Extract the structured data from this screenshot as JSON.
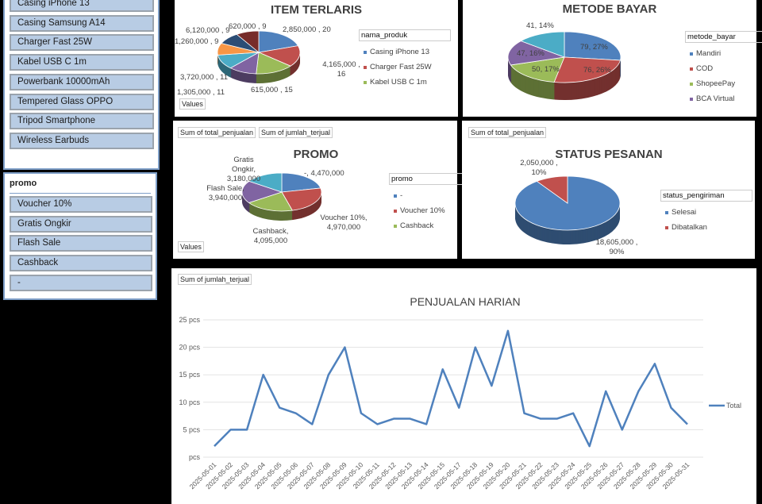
{
  "slicer_produk": {
    "items": [
      "Casing iPhone 13",
      "Casing Samsung A14",
      "Charger Fast 25W",
      "Kabel USB C 1m",
      "Powerbank 10000mAh",
      "Tempered Glass OPPO",
      "Tripod Smartphone",
      "Wireless Earbuds"
    ]
  },
  "slicer_promo": {
    "header": "promo",
    "items": [
      "Voucher 10%",
      "Gratis Ongkir",
      "Flash Sale",
      "Cashback",
      "-"
    ]
  },
  "chart_data": [
    {
      "type": "pie",
      "title": "ITEM TERLARIS",
      "legend_title": "nama_produk",
      "legend": [
        "Casing iPhone 13",
        "Charger Fast 25W",
        "Kabel USB C 1m"
      ],
      "field_button": "Values",
      "labels": [
        "2,850,000 , 20",
        "4,165,000 , 16",
        "615,000 , 15",
        "1,305,000 , 11",
        "3,720,000 , 11",
        "1,260,000 , 9",
        "6,120,000 , 9",
        "620,000 , 9"
      ],
      "values": [
        20,
        16,
        15,
        11,
        11,
        9,
        9,
        9
      ],
      "colors": [
        "#4f81bd",
        "#c0504d",
        "#9bbb59",
        "#8064a2",
        "#4bacc6",
        "#f79646",
        "#2c4d75",
        "#772c2a"
      ]
    },
    {
      "type": "pie",
      "title": "METODE BAYAR",
      "legend_title": "metode_bayar",
      "legend": [
        "Mandiri",
        "COD",
        "ShopeePay",
        "BCA Virtual"
      ],
      "labels": [
        "79, 27%",
        "76, 26%",
        "50, 17%",
        "47, 16%",
        "41, 14%"
      ],
      "values": [
        79,
        76,
        50,
        47,
        41
      ],
      "colors": [
        "#4f81bd",
        "#c0504d",
        "#9bbb59",
        "#8064a2",
        "#4bacc6"
      ]
    },
    {
      "type": "pie",
      "title": "PROMO",
      "field_buttons": [
        "Sum of total_penjualan",
        "Sum of jumlah_terjual"
      ],
      "legend_title": "promo",
      "legend": [
        "-",
        "Voucher 10%",
        "Cashback"
      ],
      "field_button": "Values",
      "labels": [
        "-,  4,470,000",
        "Voucher 10%, 4,970,000",
        "Cashback, 4,095,000",
        "Flash Sale, 3,940,000",
        "Gratis Ongkir, 3,180,000"
      ],
      "values": [
        4470000,
        4970000,
        4095000,
        3940000,
        3180000
      ],
      "colors": [
        "#4f81bd",
        "#c0504d",
        "#9bbb59",
        "#8064a2",
        "#4bacc6"
      ]
    },
    {
      "type": "pie",
      "title": "STATUS PESANAN",
      "field_buttons": [
        "Sum of total_penjualan"
      ],
      "legend_title": "status_pengiriman",
      "legend": [
        "Selesai",
        "Dibatalkan"
      ],
      "labels": [
        "18,605,000 , 90%",
        "2,050,000 , 10%"
      ],
      "values": [
        18605000,
        2050000
      ],
      "colors": [
        "#4f81bd",
        "#c0504d"
      ]
    },
    {
      "type": "line",
      "title": "PENJUALAN HARIAN",
      "field_button": "Sum of jumlah_terjual",
      "series": [
        {
          "name": "Total",
          "values": [
            2,
            5,
            5,
            15,
            9,
            8,
            6,
            15,
            20,
            8,
            6,
            7,
            7,
            6,
            16,
            9,
            20,
            13,
            23,
            8,
            7,
            7,
            8,
            2,
            12,
            5,
            12,
            17,
            9,
            6
          ]
        }
      ],
      "x": [
        "2025-05-01",
        "2025-05-02",
        "2025-05-03",
        "2025-05-04",
        "2025-05-05",
        "2025-05-06",
        "2025-05-07",
        "2025-05-08",
        "2025-05-09",
        "2025-05-10",
        "2025-05-11",
        "2025-05-12",
        "2025-05-13",
        "2025-05-14",
        "2025-05-15",
        "2025-05-17",
        "2025-05-18",
        "2025-05-19",
        "2025-05-20",
        "2025-05-21",
        "2025-05-22",
        "2025-05-23",
        "2025-05-24",
        "2025-05-25",
        "2025-05-26",
        "2025-05-27",
        "2025-05-28",
        "2025-05-29",
        "2025-05-30",
        "2025-05-31"
      ],
      "yticks": [
        "pcs",
        "5 pcs",
        "10 pcs",
        "15 pcs",
        "20 pcs",
        "25 pcs"
      ],
      "ylim": [
        0,
        25
      ],
      "grid": true,
      "legend_placement": "right",
      "color": "#4f81bd"
    }
  ]
}
